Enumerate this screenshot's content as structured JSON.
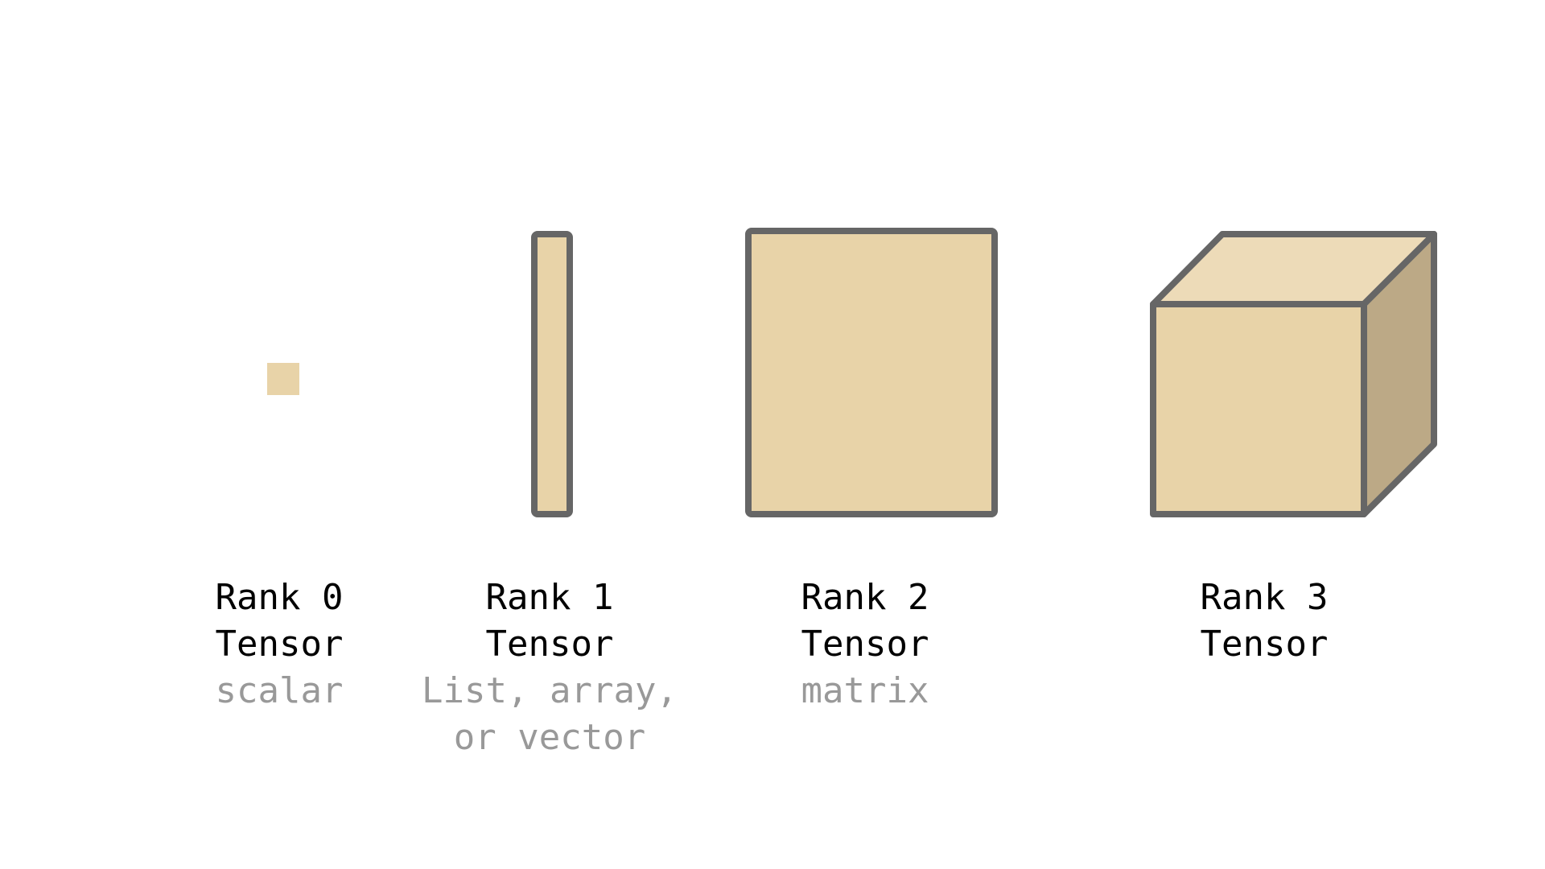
{
  "colors": {
    "fill": "#e8d3a8",
    "top_face": "#eddbb8",
    "side_face": "#bca986",
    "stroke": "#666666",
    "title_text": "#000000",
    "subtitle_text": "#999999"
  },
  "tensors": [
    {
      "title_1": "Rank 0",
      "title_2": "Tensor",
      "subtitle_1": "scalar",
      "subtitle_2": ""
    },
    {
      "title_1": "Rank 1",
      "title_2": "Tensor",
      "subtitle_1": "List, array,",
      "subtitle_2": "or vector"
    },
    {
      "title_1": "Rank 2",
      "title_2": "Tensor",
      "subtitle_1": "matrix",
      "subtitle_2": ""
    },
    {
      "title_1": "Rank 3",
      "title_2": "Tensor",
      "subtitle_1": "",
      "subtitle_2": ""
    }
  ]
}
